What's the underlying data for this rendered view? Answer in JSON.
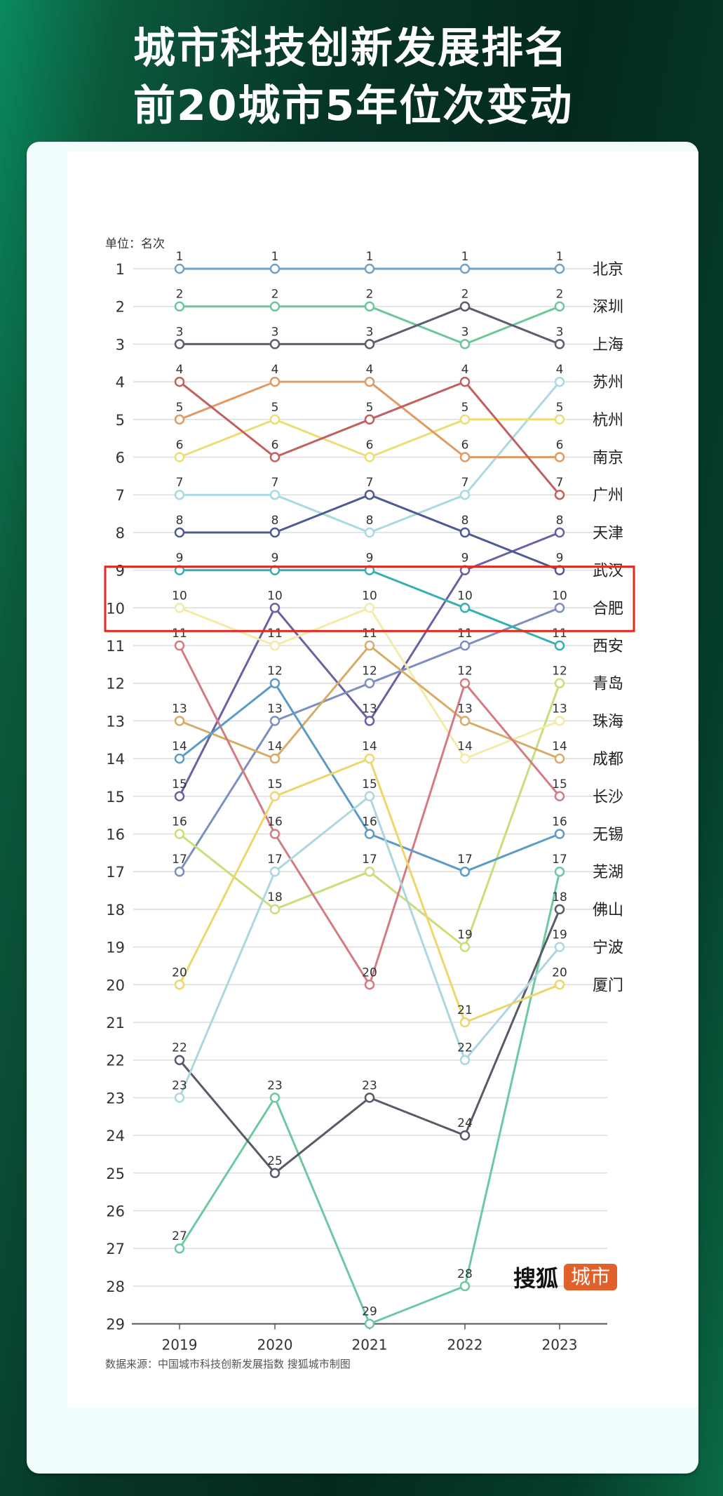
{
  "header": {
    "title_line1": "城市科技创新发展排名",
    "title_line2": "前20城市5年位次变动"
  },
  "footer": {
    "source": "数据来源：中国城市科技创新发展指数 搜狐城市制图"
  },
  "logo": {
    "text": "搜狐",
    "badge": "城市",
    "badge_color": "#e2612a"
  },
  "highlight": {
    "ranks": [
      9,
      10
    ],
    "color": "#e02a20"
  },
  "chart_data": {
    "type": "line",
    "subtype": "bump",
    "title": "城市科技创新发展排名 前20城市5年位次变动",
    "unit_label": "单位：名次",
    "xlabel": "",
    "ylabel": "名次",
    "categories": [
      "2019",
      "2020",
      "2021",
      "2022",
      "2023"
    ],
    "y_ticks": [
      1,
      2,
      3,
      4,
      5,
      6,
      7,
      8,
      9,
      10,
      11,
      12,
      13,
      14,
      15,
      16,
      17,
      18,
      19,
      20,
      21,
      22,
      23,
      24,
      25,
      26,
      27,
      28,
      29
    ],
    "ylim": [
      29,
      1
    ],
    "y_inverted": true,
    "grid": true,
    "legend_position": "right (end labels)",
    "series": [
      {
        "name": "北京",
        "values": [
          1,
          1,
          1,
          1,
          1
        ],
        "color": "#6fa3c7"
      },
      {
        "name": "深圳",
        "values": [
          2,
          2,
          2,
          3,
          2
        ],
        "color": "#6cc79a"
      },
      {
        "name": "上海",
        "values": [
          3,
          3,
          3,
          2,
          3
        ],
        "color": "#5a5e6e"
      },
      {
        "name": "苏州",
        "values": [
          7,
          7,
          8,
          7,
          4
        ],
        "color": "#a9d9e2"
      },
      {
        "name": "杭州",
        "values": [
          6,
          5,
          6,
          5,
          5
        ],
        "color": "#ecde74"
      },
      {
        "name": "南京",
        "values": [
          5,
          4,
          4,
          6,
          6
        ],
        "color": "#e09a62"
      },
      {
        "name": "广州",
        "values": [
          4,
          6,
          5,
          4,
          7
        ],
        "color": "#c0605f"
      },
      {
        "name": "天津",
        "values": [
          15,
          10,
          13,
          9,
          8
        ],
        "color": "#6c5fa2"
      },
      {
        "name": "武汉",
        "values": [
          8,
          8,
          7,
          8,
          9
        ],
        "color": "#4d5b94"
      },
      {
        "name": "合肥",
        "values": [
          17,
          13,
          12,
          11,
          10
        ],
        "color": "#7d8fbf"
      },
      {
        "name": "西安",
        "values": [
          9,
          9,
          9,
          10,
          11
        ],
        "color": "#35b0b0"
      },
      {
        "name": "青岛",
        "values": [
          16,
          18,
          17,
          19,
          12
        ],
        "color": "#c6df7a"
      },
      {
        "name": "珠海",
        "values": [
          10,
          11,
          10,
          14,
          13
        ],
        "color": "#f2ebaa"
      },
      {
        "name": "成都",
        "values": [
          13,
          14,
          11,
          13,
          14
        ],
        "color": "#d8ab68"
      },
      {
        "name": "长沙",
        "values": [
          11,
          16,
          20,
          12,
          15
        ],
        "color": "#d47b82"
      },
      {
        "name": "无锡",
        "values": [
          14,
          12,
          16,
          17,
          16
        ],
        "color": "#5b9bc5"
      },
      {
        "name": "芜湖",
        "values": [
          27,
          23,
          29,
          28,
          17
        ],
        "color": "#6ec9a0"
      },
      {
        "name": "佛山",
        "values": [
          22,
          25,
          23,
          24,
          18
        ],
        "color": "#575a68"
      },
      {
        "name": "宁波",
        "values": [
          23,
          17,
          15,
          22,
          19
        ],
        "color": "#acd6e0"
      },
      {
        "name": "厦门",
        "values": [
          20,
          15,
          14,
          21,
          20
        ],
        "color": "#eed66a"
      }
    ]
  }
}
